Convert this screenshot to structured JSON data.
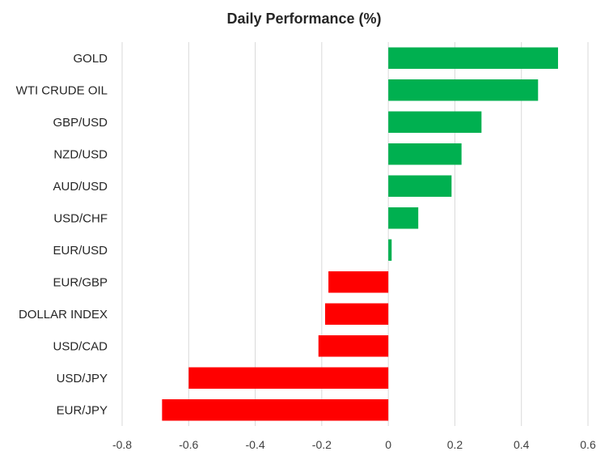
{
  "chart_data": {
    "type": "bar",
    "orientation": "horizontal",
    "title": "Daily Performance  (%)",
    "xlabel": "",
    "ylabel": "",
    "categories": [
      "GOLD",
      "WTI CRUDE OIL",
      "GBP/USD",
      "NZD/USD",
      "AUD/USD",
      "USD/CHF",
      "EUR/USD",
      "EUR/GBP",
      "DOLLAR INDEX",
      "USD/CAD",
      "USD/JPY",
      "EUR/JPY"
    ],
    "values": [
      0.51,
      0.45,
      0.28,
      0.22,
      0.19,
      0.09,
      0.01,
      -0.18,
      -0.19,
      -0.21,
      -0.6,
      -0.68
    ],
    "xlim": [
      -0.8,
      0.6
    ],
    "xticks": [
      -0.8,
      -0.6,
      -0.4,
      -0.2,
      0,
      0.2,
      0.4,
      0.6
    ],
    "xtick_labels": [
      "-0.8",
      "-0.6",
      "-0.4",
      "-0.2",
      "0",
      "0.2",
      "0.4",
      "0.6"
    ],
    "grid": true,
    "legend": "none",
    "colors": {
      "positive": "#00b050",
      "negative": "#ff0000",
      "gridline": "#d9d9d9"
    }
  }
}
